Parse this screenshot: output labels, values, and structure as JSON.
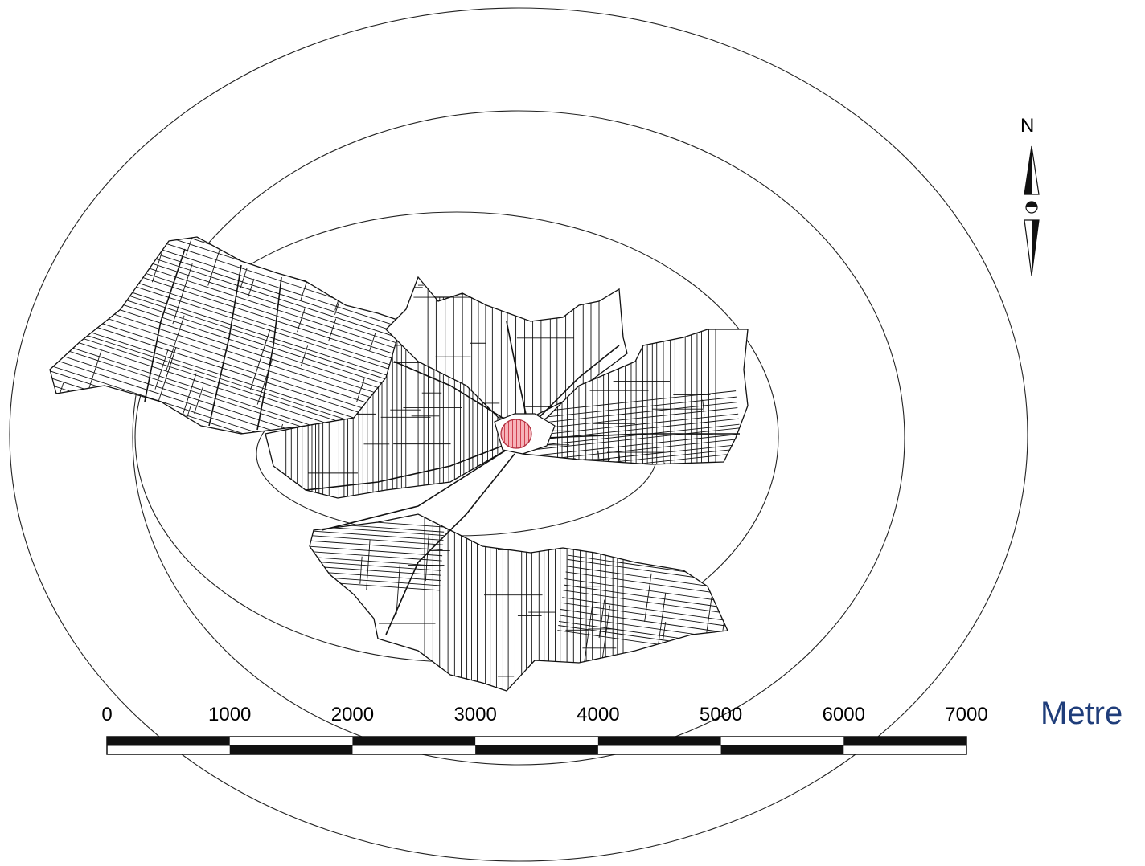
{
  "north_arrow": {
    "label": "N",
    "icon": "north-arrow-icon"
  },
  "scale_bar": {
    "ticks": [
      "0",
      "1000",
      "2000",
      "3000",
      "4000",
      "5000",
      "6000",
      "7000"
    ],
    "unit": "Metre"
  },
  "buffer_rings": {
    "count": 4
  },
  "settlement_center": {
    "fill_color": "#f4a6ad",
    "stroke_color": "#c0392b"
  },
  "colors": {
    "rings": "#222222",
    "parcels": "#111111",
    "unit_text": "#1f3d7a"
  }
}
